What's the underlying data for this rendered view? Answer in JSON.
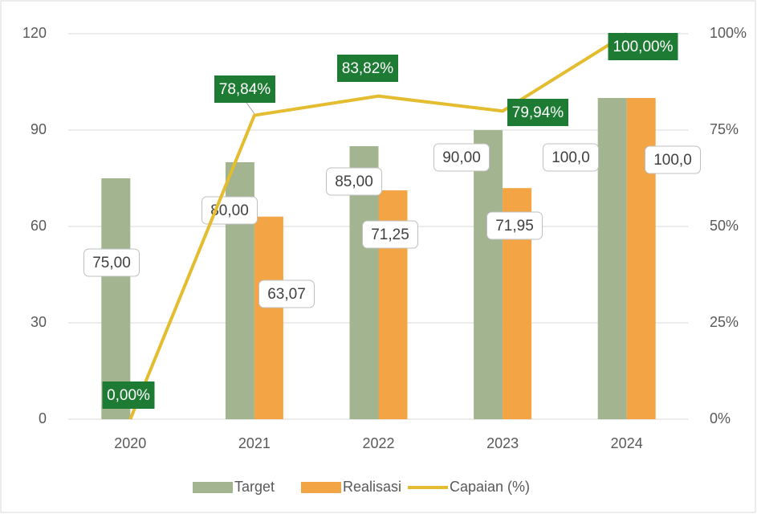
{
  "chart_data": {
    "type": "bar+line",
    "categories": [
      "2020",
      "2021",
      "2022",
      "2023",
      "2024"
    ],
    "series": [
      {
        "name": "Target",
        "color": "#a2b590",
        "values": [
          75,
          80,
          85,
          90,
          100
        ],
        "value_labels": [
          "75,00",
          "80,00",
          "85,00",
          "90,00",
          "100,0"
        ]
      },
      {
        "name": "Realisasi",
        "color": "#f3a444",
        "values": [
          null,
          63.07,
          71.25,
          71.95,
          100
        ],
        "value_labels": [
          null,
          "63,07",
          "71,25",
          "71,95",
          "100,0"
        ]
      },
      {
        "name": "Capaian (%)",
        "color": "#e3bc2f",
        "type": "line",
        "axis": "y2",
        "values": [
          0,
          78.84,
          83.82,
          79.94,
          100
        ],
        "value_labels": [
          "0,00%",
          "78,84%",
          "83,82%",
          "79,94%",
          "100,00%"
        ]
      }
    ],
    "ylim": [
      0,
      120
    ],
    "yticks": [
      0,
      30,
      60,
      90,
      120
    ],
    "y2lim": [
      0,
      100
    ],
    "y2ticks": [
      {
        "value": 0,
        "label": "0%"
      },
      {
        "value": 25,
        "label": "25%"
      },
      {
        "value": 50,
        "label": "50%"
      },
      {
        "value": 75,
        "label": "75%"
      },
      {
        "value": 100,
        "label": "100%"
      }
    ],
    "grid": true,
    "legend": "bottom"
  }
}
